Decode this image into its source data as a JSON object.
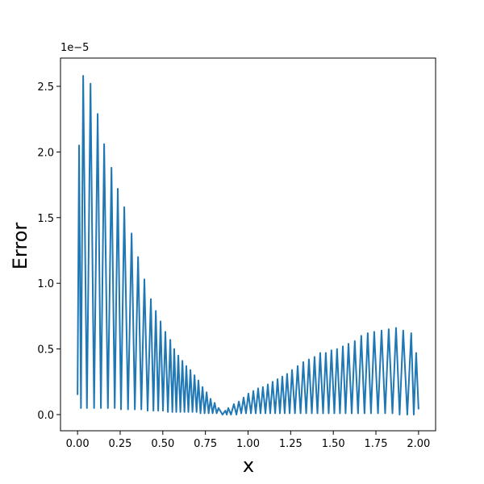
{
  "chart_data": {
    "type": "line",
    "xlabel": "x",
    "ylabel": "Error",
    "y_offset_label": "1e−5",
    "color": "#1f77b4",
    "grid": false,
    "xlim": [
      -0.1,
      2.1
    ],
    "ylim": [
      -0.123,
      2.715
    ],
    "xticks": [
      {
        "value": 0,
        "label": "0.00"
      },
      {
        "value": 0.25,
        "label": "0.25"
      },
      {
        "value": 0.5,
        "label": "0.50"
      },
      {
        "value": 0.75,
        "label": "0.75"
      },
      {
        "value": 1,
        "label": "1.00"
      },
      {
        "value": 1.25,
        "label": "1.25"
      },
      {
        "value": 1.5,
        "label": "1.50"
      },
      {
        "value": 1.75,
        "label": "1.75"
      },
      {
        "value": 2,
        "label": "2.00"
      }
    ],
    "yticks": [
      {
        "value": 0,
        "label": "0.0"
      },
      0.5,
      {
        "value": 1,
        "label": "1.0"
      },
      1.5,
      {
        "value": 2,
        "label": "2.0"
      },
      2.5
    ],
    "x": [
      0,
      0.009,
      0.02,
      0.033,
      0.055,
      0.076,
      0.097,
      0.118,
      0.137,
      0.156,
      0.178,
      0.199,
      0.218,
      0.236,
      0.255,
      0.274,
      0.296,
      0.317,
      0.336,
      0.355,
      0.374,
      0.392,
      0.411,
      0.43,
      0.445,
      0.459,
      0.473,
      0.487,
      0.501,
      0.515,
      0.53,
      0.544,
      0.556,
      0.567,
      0.579,
      0.591,
      0.603,
      0.615,
      0.627,
      0.638,
      0.65,
      0.662,
      0.674,
      0.686,
      0.698,
      0.709,
      0.721,
      0.733,
      0.745,
      0.757,
      0.769,
      0.78,
      0.792,
      0.804,
      0.816,
      0.827,
      0.85,
      0.867,
      0.875,
      0.884,
      0.9,
      0.917,
      0.932,
      0.946,
      0.96,
      0.974,
      0.988,
      1.002,
      1.017,
      1.031,
      1.045,
      1.059,
      1.073,
      1.087,
      1.102,
      1.116,
      1.13,
      1.144,
      1.159,
      1.173,
      1.187,
      1.201,
      1.215,
      1.229,
      1.244,
      1.258,
      1.275,
      1.291,
      1.308,
      1.324,
      1.341,
      1.357,
      1.374,
      1.39,
      1.407,
      1.423,
      1.44,
      1.456,
      1.473,
      1.489,
      1.506,
      1.522,
      1.539,
      1.556,
      1.572,
      1.589,
      1.608,
      1.626,
      1.645,
      1.664,
      1.683,
      1.702,
      1.721,
      1.74,
      1.762,
      1.783,
      1.804,
      1.825,
      1.847,
      1.868,
      1.889,
      1.91,
      1.934,
      1.957,
      1.972,
      1.986,
      2.0
    ],
    "values": [
      0.15,
      2.05,
      0.05,
      2.58,
      0.05,
      2.52,
      0.05,
      2.29,
      0.05,
      2.06,
      0.05,
      1.88,
      0.05,
      1.72,
      0.04,
      1.58,
      0.04,
      1.38,
      0.04,
      1.2,
      0.04,
      1.03,
      0.03,
      0.88,
      0.03,
      0.79,
      0.03,
      0.71,
      0.03,
      0.63,
      0.02,
      0.57,
      0.02,
      0.5,
      0.02,
      0.45,
      0.02,
      0.41,
      0.02,
      0.37,
      0.02,
      0.34,
      0.02,
      0.3,
      0.02,
      0.26,
      0.01,
      0.21,
      0.01,
      0.17,
      0.01,
      0.12,
      0.01,
      0.09,
      0.01,
      0.05,
      0,
      0.03,
      0,
      0.05,
      0,
      0.08,
      0,
      0.1,
      0.01,
      0.13,
      0.01,
      0.16,
      0.01,
      0.18,
      0.01,
      0.2,
      0.01,
      0.21,
      0.01,
      0.23,
      0.01,
      0.25,
      0.01,
      0.27,
      0.01,
      0.29,
      0.01,
      0.31,
      0.01,
      0.34,
      0.01,
      0.37,
      0.01,
      0.4,
      0.01,
      0.42,
      0.01,
      0.44,
      0.01,
      0.47,
      0.01,
      0.47,
      0.01,
      0.49,
      0.01,
      0.5,
      0.01,
      0.52,
      0.01,
      0.54,
      0.01,
      0.56,
      0.01,
      0.6,
      0.01,
      0.62,
      0.01,
      0.63,
      0.01,
      0.64,
      0.01,
      0.65,
      0.01,
      0.66,
      0,
      0.64,
      0,
      0.62,
      0,
      0.47,
      0.04
    ]
  }
}
